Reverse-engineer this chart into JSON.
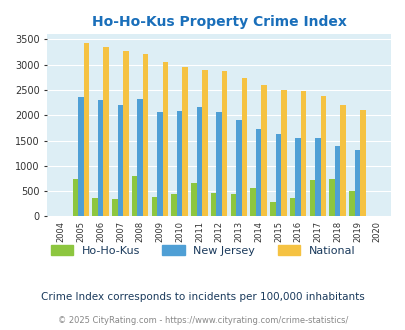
{
  "title": "Ho-Ho-Kus Property Crime Index",
  "title_color": "#1a6fba",
  "years": [
    2004,
    2005,
    2006,
    2007,
    2008,
    2009,
    2010,
    2011,
    2012,
    2013,
    2014,
    2015,
    2016,
    2017,
    2018,
    2019,
    2020
  ],
  "hohokas": [
    0,
    730,
    370,
    350,
    790,
    390,
    440,
    660,
    460,
    450,
    565,
    280,
    360,
    720,
    740,
    510,
    0
  ],
  "new_jersey": [
    0,
    2360,
    2310,
    2200,
    2320,
    2070,
    2080,
    2170,
    2060,
    1900,
    1720,
    1620,
    1560,
    1560,
    1400,
    1320,
    0
  ],
  "national": [
    0,
    3420,
    3340,
    3270,
    3220,
    3050,
    2960,
    2900,
    2870,
    2740,
    2600,
    2500,
    2470,
    2380,
    2210,
    2100,
    0
  ],
  "bar_width": 0.28,
  "color_hohokas": "#8dc63f",
  "color_nj": "#4f9fd5",
  "color_national": "#f5c242",
  "bg_color": "#ddeef5",
  "ylim": [
    0,
    3600
  ],
  "yticks": [
    0,
    500,
    1000,
    1500,
    2000,
    2500,
    3000,
    3500
  ],
  "xlabel_fontsize": 7,
  "ylabel_fontsize": 7,
  "tick_fontsize": 7,
  "legend_fontsize": 8,
  "subtitle": "Crime Index corresponds to incidents per 100,000 inhabitants",
  "footer": "© 2025 CityRating.com - https://www.cityrating.com/crime-statistics/",
  "subtitle_color": "#1a3a5c",
  "footer_color": "#888888"
}
